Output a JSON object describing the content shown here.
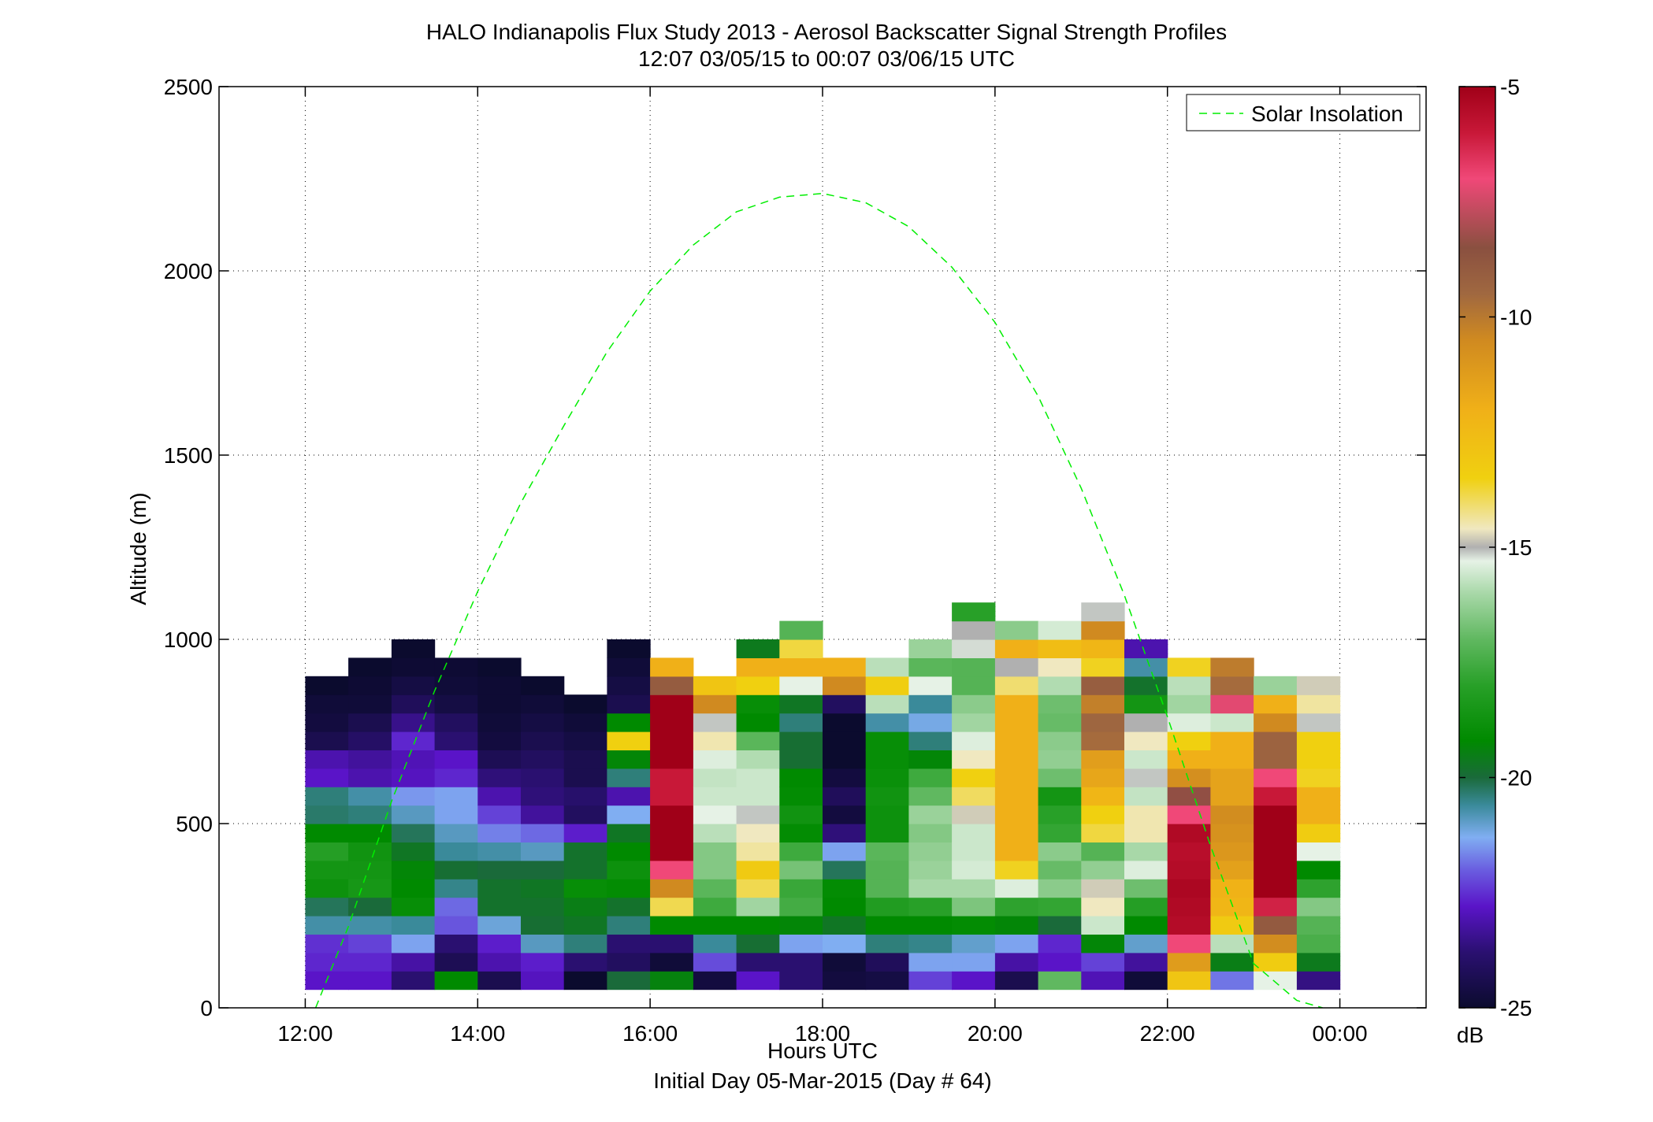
{
  "chart_data": {
    "type": "heatmap",
    "title": "HALO Indianapolis Flux Study 2013 - Aerosol Backscatter Signal Strength Profiles",
    "subtitle": "12:07 03/05/15 to 00:07 03/06/15  UTC",
    "xlabel": "Hours UTC",
    "xlabel2": "Initial Day 05-Mar-2015 (Day # 64)",
    "ylabel": "Altitude (m)",
    "xlim": [
      11.0,
      25.0
    ],
    "ylim": [
      0,
      2500
    ],
    "x_ticks": [
      12,
      14,
      16,
      18,
      20,
      22,
      24
    ],
    "x_tick_labels": [
      "12:00",
      "14:00",
      "16:00",
      "18:00",
      "20:00",
      "22:00",
      "00:00"
    ],
    "y_ticks": [
      0,
      500,
      1000,
      1500,
      2000,
      2500
    ],
    "y_tick_labels": [
      "0",
      "500",
      "1000",
      "1500",
      "2000",
      "2500"
    ],
    "grid": true,
    "legend": {
      "position": "top-right",
      "entries": [
        "Solar Insolation"
      ]
    },
    "colorbar": {
      "label": "dB",
      "range": [
        -25,
        -5
      ],
      "ticks": [
        -25,
        -20,
        -15,
        -10,
        -5
      ],
      "tick_labels": [
        "-25",
        "-20",
        "-15",
        "-10",
        "-5"
      ],
      "stops": [
        {
          "v": -25,
          "c": "#0b0b2e"
        },
        {
          "v": -23.8,
          "c": "#2a1070"
        },
        {
          "v": -22.8,
          "c": "#5a14c8"
        },
        {
          "v": -22.0,
          "c": "#6a5ee0"
        },
        {
          "v": -21.3,
          "c": "#80aef2"
        },
        {
          "v": -20.6,
          "c": "#3a8a9a"
        },
        {
          "v": -20.0,
          "c": "#1a6a3a"
        },
        {
          "v": -19.2,
          "c": "#008a00"
        },
        {
          "v": -18.0,
          "c": "#28a028"
        },
        {
          "v": -17.0,
          "c": "#60b860"
        },
        {
          "v": -16.0,
          "c": "#a8d8a8"
        },
        {
          "v": -15.3,
          "c": "#e6f2e6"
        },
        {
          "v": -15.0,
          "c": "#b0b0b0"
        },
        {
          "v": -14.6,
          "c": "#f0e8c0"
        },
        {
          "v": -13.5,
          "c": "#f0d010"
        },
        {
          "v": -12.0,
          "c": "#f0b018"
        },
        {
          "v": -10.5,
          "c": "#d08a20"
        },
        {
          "v": -9.5,
          "c": "#a06840"
        },
        {
          "v": -8.5,
          "c": "#8a5040"
        },
        {
          "v": -7.0,
          "c": "#f04878"
        },
        {
          "v": -6.0,
          "c": "#c81838"
        },
        {
          "v": -5.0,
          "c": "#a00018"
        }
      ]
    },
    "cell": {
      "dx_hours": 0.5,
      "dy_m": 50
    },
    "columns": [
      {
        "t": 12.25,
        "vals": [
          -22.8,
          -22.6,
          -22.5,
          -20.7,
          -20.2,
          -18.8,
          -18.6,
          -18.1,
          -19.2,
          -20.3,
          -20.4,
          -22.8,
          -23.1,
          -24.4,
          -24.7,
          -24.8,
          -25.0
        ]
      },
      {
        "t": 12.75,
        "vals": [
          -22.8,
          -22.6,
          -22.3,
          -20.7,
          -20.0,
          -18.5,
          -18.6,
          -18.7,
          -19.2,
          -20.4,
          -20.7,
          -23.1,
          -23.3,
          -24.0,
          -24.4,
          -24.8,
          -24.9,
          -25.0
        ]
      },
      {
        "t": 13.25,
        "vals": [
          -23.8,
          -23.2,
          -21.4,
          -20.6,
          -19.0,
          -19.2,
          -19.3,
          -19.7,
          -20.2,
          -20.9,
          -21.5,
          -22.9,
          -23.0,
          -22.6,
          -23.5,
          -24.2,
          -24.6,
          -24.9,
          -25.0
        ]
      },
      {
        "t": 13.75,
        "vals": [
          -19.2,
          -24.3,
          -23.8,
          -22.1,
          -21.9,
          -20.5,
          -19.9,
          -20.6,
          -20.9,
          -21.4,
          -21.4,
          -22.6,
          -22.8,
          -23.8,
          -24.1,
          -24.6,
          -24.8,
          -24.9
        ]
      },
      {
        "t": 14.25,
        "vals": [
          -24.4,
          -23.1,
          -22.7,
          -21.1,
          -19.8,
          -19.8,
          -20.0,
          -20.7,
          -21.7,
          -22.3,
          -23.1,
          -23.7,
          -24.3,
          -24.7,
          -24.8,
          -24.9,
          -24.9,
          -25.0
        ]
      },
      {
        "t": 14.75,
        "vals": [
          -22.9,
          -22.7,
          -20.9,
          -19.9,
          -19.8,
          -19.7,
          -20.0,
          -20.9,
          -21.9,
          -23.3,
          -23.7,
          -23.8,
          -24.1,
          -24.4,
          -24.6,
          -24.8,
          -25.0
        ]
      },
      {
        "t": 15.25,
        "vals": [
          -25.0,
          -23.8,
          -20.4,
          -19.7,
          -19.5,
          -19.0,
          -19.8,
          -19.8,
          -22.7,
          -24.1,
          -23.9,
          -24.4,
          -24.4,
          -24.6,
          -24.8,
          -25.0
        ]
      },
      {
        "t": 15.75,
        "vals": [
          -20.0,
          -24.1,
          -23.8,
          -20.4,
          -19.8,
          -19.1,
          -18.8,
          -19.2,
          -19.7,
          -21.3,
          -23.1,
          -20.4,
          -19.3,
          -13.5,
          -19.2,
          -24.4,
          -24.6,
          -24.8,
          -25.0
        ]
      },
      {
        "t": 16.25,
        "vals": [
          -19.4,
          -24.8,
          -23.8,
          -19.2,
          -13.9,
          -10.5,
          -7.0,
          -5.0,
          -5.0,
          -5.0,
          -6.0,
          -6.0,
          -5.0,
          -5.0,
          -5.0,
          -5.0,
          -9.0,
          -12.0
        ]
      },
      {
        "t": 16.75,
        "vals": [
          -24.7,
          -22.2,
          -20.6,
          -19.2,
          -17.6,
          -17.1,
          -16.5,
          -16.5,
          -15.8,
          -15.3,
          -15.6,
          -15.7,
          -15.4,
          -14.5,
          -15.1,
          -10.5,
          -13.0
        ]
      },
      {
        "t": 17.25,
        "vals": [
          -22.8,
          -23.8,
          -19.9,
          -19.2,
          -16.1,
          -13.9,
          -13.2,
          -14.4,
          -14.6,
          -15.1,
          -15.6,
          -15.6,
          -15.9,
          -17.1,
          -19.2,
          -19.0,
          -13.5,
          -12.0,
          -19.6
        ]
      },
      {
        "t": 17.75,
        "vals": [
          -23.8,
          -23.8,
          -21.4,
          -19.3,
          -17.5,
          -17.7,
          -16.7,
          -17.6,
          -19.1,
          -18.7,
          -19.1,
          -19.2,
          -19.9,
          -19.9,
          -20.4,
          -19.7,
          -15.3,
          -12.0,
          -13.8,
          -17.2
        ]
      },
      {
        "t": 18.25,
        "vals": [
          -24.7,
          -24.8,
          -21.3,
          -19.7,
          -19.2,
          -19.1,
          -20.2,
          -21.4,
          -23.7,
          -24.7,
          -24.2,
          -24.7,
          -25.0,
          -25.0,
          -25.0,
          -24.1,
          -10.5,
          -12.0
        ]
      },
      {
        "t": 18.75,
        "vals": [
          -24.6,
          -24.2,
          -20.4,
          -19.2,
          -18.2,
          -17.2,
          -17.2,
          -17.1,
          -18.8,
          -18.8,
          -18.7,
          -18.9,
          -19.0,
          -19.0,
          -20.7,
          -15.8,
          -13.4,
          -15.8
        ]
      },
      {
        "t": 19.25,
        "vals": [
          -22.3,
          -21.4,
          -20.5,
          -19.2,
          -18.0,
          -16.0,
          -16.2,
          -16.3,
          -16.5,
          -16.2,
          -17.0,
          -17.6,
          -19.3,
          -20.4,
          -21.2,
          -20.6,
          -15.3,
          -17.1,
          -16.2
        ]
      },
      {
        "t": 19.75,
        "vals": [
          -22.8,
          -21.4,
          -21.0,
          -19.1,
          -16.6,
          -16.0,
          -15.5,
          -15.6,
          -15.6,
          -14.8,
          -14.0,
          -13.5,
          -14.6,
          -15.4,
          -16.1,
          -16.4,
          -17.2,
          -17.2,
          -15.2,
          -15.0,
          -18.0
        ]
      },
      {
        "t": 20.25,
        "vals": [
          -24.4,
          -23.2,
          -21.4,
          -19.3,
          -17.9,
          -15.4,
          -13.6,
          -12.0,
          -12.0,
          -12.0,
          -12.0,
          -12.0,
          -12.0,
          -12.0,
          -12.0,
          -12.0,
          -14.1,
          -15.0,
          -12.0,
          -16.4
        ]
      },
      {
        "t": 20.75,
        "vals": [
          -17.0,
          -22.8,
          -22.6,
          -20.0,
          -17.8,
          -16.4,
          -16.9,
          -16.4,
          -17.8,
          -18.0,
          -18.6,
          -16.8,
          -16.3,
          -16.4,
          -16.9,
          -16.8,
          -15.9,
          -14.6,
          -12.6,
          -15.5
        ]
      },
      {
        "t": 21.25,
        "vals": [
          -23.0,
          -22.3,
          -19.3,
          -15.6,
          -14.6,
          -14.8,
          -16.3,
          -17.2,
          -13.8,
          -13.5,
          -12.3,
          -11.6,
          -11.3,
          -9.6,
          -9.4,
          -10.2,
          -9.1,
          -13.6,
          -12.3,
          -10.5,
          -15.1
        ]
      },
      {
        "t": 21.75,
        "vals": [
          -24.8,
          -23.3,
          -21.0,
          -19.2,
          -18.1,
          -16.8,
          -15.4,
          -16.0,
          -14.5,
          -14.5,
          -15.7,
          -15.1,
          -15.6,
          -14.6,
          -15.0,
          -18.6,
          -19.8,
          -20.7,
          -23.1
        ]
      },
      {
        "t": 22.25,
        "vals": [
          -13.0,
          -11.2,
          -7.0,
          -5.5,
          -5.4,
          -5.3,
          -5.5,
          -5.6,
          -5.4,
          -7.0,
          -8.4,
          -10.7,
          -12.0,
          -13.5,
          -15.4,
          -16.1,
          -15.8,
          -13.6
        ]
      },
      {
        "t": 22.75,
        "vals": [
          -21.8,
          -19.5,
          -15.8,
          -13.2,
          -12.3,
          -12.1,
          -11.4,
          -11.0,
          -10.8,
          -10.6,
          -11.5,
          -11.5,
          -12.0,
          -12.0,
          -15.6,
          -7.2,
          -9.6,
          -10.1
        ]
      },
      {
        "t": 23.25,
        "vals": [
          -15.3,
          -13.3,
          -10.6,
          -8.9,
          -6.2,
          -5.0,
          -5.0,
          -5.0,
          -5.0,
          -5.0,
          -6.0,
          -7.0,
          -9.3,
          -9.3,
          -10.5,
          -12.0,
          -16.2
        ]
      },
      {
        "t": 23.75,
        "vals": [
          -23.6,
          -19.6,
          -17.4,
          -17.2,
          -16.5,
          -17.9,
          -19.2,
          -15.3,
          -13.3,
          -12.0,
          -12.0,
          -13.6,
          -13.5,
          -13.5,
          -15.1,
          -14.4,
          -14.8
        ]
      }
    ],
    "series": [
      {
        "name": "Solar Insolation",
        "type": "line",
        "x": [
          12.12,
          12.5,
          13.0,
          13.5,
          14.0,
          14.5,
          15.0,
          15.5,
          16.0,
          16.5,
          17.0,
          17.5,
          18.0,
          18.5,
          19.0,
          19.5,
          20.0,
          20.5,
          21.0,
          21.5,
          22.0,
          22.5,
          23.0,
          23.5,
          23.8
        ],
        "y": [
          0,
          220,
          560,
          860,
          1130,
          1370,
          1580,
          1780,
          1945,
          2070,
          2160,
          2200,
          2210,
          2185,
          2120,
          2010,
          1860,
          1660,
          1410,
          1120,
          790,
          440,
          120,
          20,
          0
        ]
      }
    ]
  }
}
